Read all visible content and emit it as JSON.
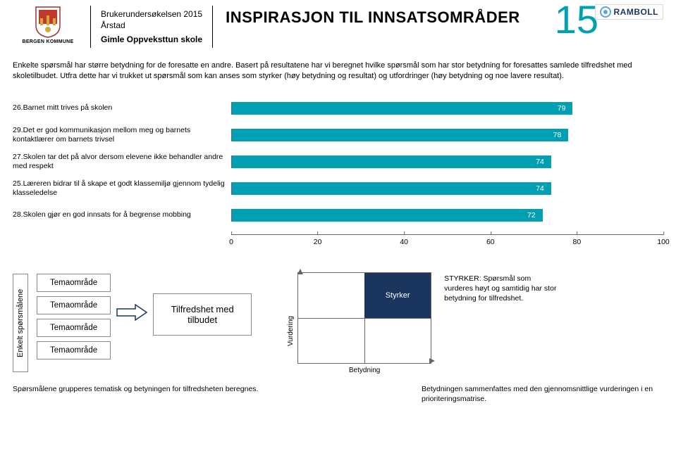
{
  "header": {
    "kommune_label": "BERGEN KOMMUNE",
    "survey": "Brukerundersøkelsen 2015",
    "district": "Årstad",
    "school": "Gimle Oppveksttun skole",
    "title": "INSPIRASJON TIL INNSATSOMRÅDER",
    "page_number": "15",
    "brand": "RAMBOLL"
  },
  "intro": "Enkelte spørsmål har større betydning for de foresatte en andre. Basert på resultatene har vi beregnet hvilke spørsmål som har stor betydning for foresattes samlede tilfredshet med skoletilbudet. Utfra dette har vi trukket ut spørsmål som kan anses som styrker (høy betydning og resultat) og utfordringer (høy betydning og noe lavere resultat).",
  "chart": {
    "type": "bar",
    "xlim": [
      0,
      100
    ],
    "ticks": [
      0,
      20,
      40,
      60,
      80,
      100
    ],
    "bar_color": "#009fb3",
    "text_color": "#ffffff",
    "rows": [
      {
        "label": "26.Barnet mitt trives på skolen",
        "value": 79
      },
      {
        "label": "29.Det er god kommunikasjon mellom meg og barnets kontaktlærer om barnets trivsel",
        "value": 78
      },
      {
        "label": "27.Skolen tar det på alvor dersom elevene ikke behandler andre med respekt",
        "value": 74
      },
      {
        "label": "25.Læreren bidrar til å skape et godt klassemiljø gjennom tydelig klasseledelse",
        "value": 74
      },
      {
        "label": "28.Skolen gjør en god innsats for å begrense mobbing",
        "value": 72
      }
    ]
  },
  "diagram": {
    "enkelt_label": "Enkelt spørsmålene",
    "tema_label": "Temaområde",
    "tema_count": 4,
    "tilfredshet_label": "Tilfredshet med tilbudet",
    "quad": {
      "y_label": "Vurdering",
      "x_label": "Betydning",
      "styrker_label": "Styrker",
      "styrker_bg": "#1a355e"
    },
    "styrker_desc": "STYRKER: Spørsmål som vurderes høyt og samtidig har stor betydning for tilfredshet."
  },
  "footer": {
    "left": "Spørsmålene grupperes tematisk og betyningen for tilfredsheten beregnes.",
    "right": "Betydningen sammenfattes med den gjennomsnittlige vurderingen i en prioriteringsmatrise."
  },
  "colors": {
    "accent": "#009fb3",
    "navy": "#1a355e",
    "crest_red": "#c0392b",
    "crest_gold": "#d4a83a"
  }
}
